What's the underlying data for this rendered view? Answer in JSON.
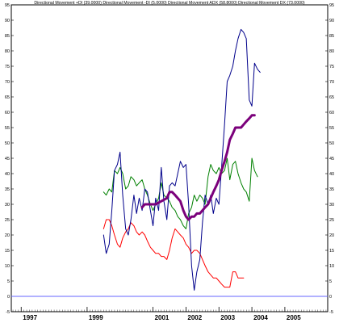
{
  "chart_data": {
    "type": "line",
    "title": "Directional Movement +DI (39.0000) Directional Movement -DI (5.0000) Directional Movement ADX (58.8000) Directional Movement DX (73.0000)",
    "xlabel": "",
    "ylabel": "",
    "x_tick_labels": [
      "1997",
      "1999",
      "2001",
      "2002",
      "2003",
      "2004",
      "2005"
    ],
    "x_tick_values": [
      1997.0,
      1999.0,
      2001.0,
      2002.0,
      2003.0,
      2004.0,
      2005.0
    ],
    "xlim": [
      1996.7,
      2006.3
    ],
    "ylim": [
      -5,
      95
    ],
    "y_ticks": [
      -5,
      0,
      5,
      10,
      15,
      20,
      25,
      30,
      35,
      40,
      45,
      50,
      55,
      60,
      65,
      70,
      75,
      80,
      85,
      90,
      95
    ],
    "grid": false,
    "reference_line": {
      "value": 0,
      "color": "#6666ff"
    },
    "series": [
      {
        "key": "plus_di",
        "color": "#008000",
        "stroke": 1,
        "points": [
          [
            1999.5,
            34
          ],
          [
            1999.58,
            33
          ],
          [
            1999.67,
            35
          ],
          [
            1999.75,
            34
          ],
          [
            1999.83,
            41
          ],
          [
            1999.92,
            40
          ],
          [
            2000.0,
            42
          ],
          [
            2000.08,
            40
          ],
          [
            2000.17,
            35
          ],
          [
            2000.25,
            36
          ],
          [
            2000.33,
            39
          ],
          [
            2000.42,
            38
          ],
          [
            2000.5,
            36
          ],
          [
            2000.58,
            37
          ],
          [
            2000.67,
            38
          ],
          [
            2000.75,
            35
          ],
          [
            2000.83,
            33
          ],
          [
            2000.92,
            30
          ],
          [
            2001.0,
            28
          ],
          [
            2001.08,
            30
          ],
          [
            2001.17,
            32
          ],
          [
            2001.25,
            37
          ],
          [
            2001.33,
            33
          ],
          [
            2001.42,
            32
          ],
          [
            2001.5,
            31
          ],
          [
            2001.58,
            29
          ],
          [
            2001.67,
            28
          ],
          [
            2001.75,
            26
          ],
          [
            2001.83,
            25
          ],
          [
            2001.92,
            23
          ],
          [
            2002.0,
            22
          ],
          [
            2002.08,
            27
          ],
          [
            2002.17,
            29
          ],
          [
            2002.25,
            33
          ],
          [
            2002.33,
            31
          ],
          [
            2002.42,
            33
          ],
          [
            2002.5,
            32
          ],
          [
            2002.58,
            30
          ],
          [
            2002.67,
            39
          ],
          [
            2002.75,
            43
          ],
          [
            2002.83,
            41
          ],
          [
            2002.92,
            40
          ],
          [
            2003.0,
            42
          ],
          [
            2003.08,
            40
          ],
          [
            2003.17,
            41
          ],
          [
            2003.25,
            45
          ],
          [
            2003.33,
            38
          ],
          [
            2003.42,
            43
          ],
          [
            2003.5,
            44
          ],
          [
            2003.58,
            40
          ],
          [
            2003.67,
            37
          ],
          [
            2003.75,
            35
          ],
          [
            2003.83,
            34
          ],
          [
            2003.92,
            31
          ],
          [
            2004.0,
            45
          ],
          [
            2004.08,
            41
          ],
          [
            2004.17,
            39
          ]
        ]
      },
      {
        "key": "minus_di",
        "color": "#ff0000",
        "stroke": 1,
        "points": [
          [
            1999.5,
            22
          ],
          [
            1999.58,
            25
          ],
          [
            1999.67,
            25
          ],
          [
            1999.75,
            23
          ],
          [
            1999.83,
            20
          ],
          [
            1999.92,
            17
          ],
          [
            2000.0,
            16
          ],
          [
            2000.08,
            19
          ],
          [
            2000.17,
            21
          ],
          [
            2000.25,
            22
          ],
          [
            2000.33,
            24
          ],
          [
            2000.42,
            23
          ],
          [
            2000.5,
            21
          ],
          [
            2000.58,
            20
          ],
          [
            2000.67,
            21
          ],
          [
            2000.75,
            20
          ],
          [
            2000.83,
            18
          ],
          [
            2000.92,
            16
          ],
          [
            2001.0,
            15
          ],
          [
            2001.08,
            14
          ],
          [
            2001.17,
            14
          ],
          [
            2001.25,
            13
          ],
          [
            2001.33,
            13
          ],
          [
            2001.42,
            12
          ],
          [
            2001.5,
            15
          ],
          [
            2001.58,
            19
          ],
          [
            2001.67,
            22
          ],
          [
            2001.75,
            21
          ],
          [
            2001.83,
            20
          ],
          [
            2001.92,
            19
          ],
          [
            2002.0,
            17
          ],
          [
            2002.08,
            16
          ],
          [
            2002.17,
            14
          ],
          [
            2002.25,
            15
          ],
          [
            2002.33,
            15
          ],
          [
            2002.42,
            14
          ],
          [
            2002.5,
            12
          ],
          [
            2002.58,
            10
          ],
          [
            2002.67,
            8
          ],
          [
            2002.75,
            7
          ],
          [
            2002.83,
            6
          ],
          [
            2002.92,
            6
          ],
          [
            2003.0,
            5
          ],
          [
            2003.08,
            4
          ],
          [
            2003.17,
            3
          ],
          [
            2003.25,
            3
          ],
          [
            2003.33,
            3
          ],
          [
            2003.42,
            8
          ],
          [
            2003.5,
            8
          ],
          [
            2003.58,
            6
          ],
          [
            2003.67,
            6
          ],
          [
            2003.75,
            6
          ]
        ]
      },
      {
        "key": "dx",
        "color": "#00008b",
        "stroke": 1,
        "points": [
          [
            1999.5,
            20
          ],
          [
            1999.58,
            14
          ],
          [
            1999.67,
            17
          ],
          [
            1999.75,
            28
          ],
          [
            1999.83,
            41
          ],
          [
            1999.92,
            43
          ],
          [
            2000.0,
            47
          ],
          [
            2000.08,
            33
          ],
          [
            2000.17,
            22
          ],
          [
            2000.25,
            20
          ],
          [
            2000.33,
            25
          ],
          [
            2000.42,
            33
          ],
          [
            2000.5,
            27
          ],
          [
            2000.58,
            32
          ],
          [
            2000.67,
            28
          ],
          [
            2000.75,
            35
          ],
          [
            2000.83,
            34
          ],
          [
            2000.92,
            28
          ],
          [
            2001.0,
            23
          ],
          [
            2001.08,
            32
          ],
          [
            2001.17,
            28
          ],
          [
            2001.25,
            42
          ],
          [
            2001.33,
            31
          ],
          [
            2001.42,
            25
          ],
          [
            2001.5,
            36
          ],
          [
            2001.58,
            37
          ],
          [
            2001.67,
            36
          ],
          [
            2001.75,
            40
          ],
          [
            2001.83,
            44
          ],
          [
            2001.92,
            42
          ],
          [
            2002.0,
            43
          ],
          [
            2002.08,
            30
          ],
          [
            2002.17,
            10
          ],
          [
            2002.25,
            2
          ],
          [
            2002.33,
            8
          ],
          [
            2002.42,
            12
          ],
          [
            2002.5,
            24
          ],
          [
            2002.58,
            33
          ],
          [
            2002.67,
            30
          ],
          [
            2002.75,
            33
          ],
          [
            2002.83,
            27
          ],
          [
            2002.92,
            32
          ],
          [
            2003.0,
            30
          ],
          [
            2003.08,
            42
          ],
          [
            2003.17,
            56
          ],
          [
            2003.25,
            70
          ],
          [
            2003.33,
            72
          ],
          [
            2003.42,
            75
          ],
          [
            2003.5,
            80
          ],
          [
            2003.58,
            84
          ],
          [
            2003.67,
            87
          ],
          [
            2003.75,
            86
          ],
          [
            2003.83,
            84
          ],
          [
            2003.92,
            64
          ],
          [
            2004.0,
            62
          ],
          [
            2004.08,
            76
          ],
          [
            2004.17,
            74
          ],
          [
            2004.25,
            73
          ]
        ]
      },
      {
        "key": "adx",
        "color": "#7b007b",
        "stroke": 3,
        "points": [
          [
            2000.67,
            29
          ],
          [
            2000.75,
            30
          ],
          [
            2000.92,
            30
          ],
          [
            2001.08,
            30
          ],
          [
            2001.25,
            31
          ],
          [
            2001.42,
            32
          ],
          [
            2001.5,
            34
          ],
          [
            2001.58,
            34
          ],
          [
            2001.67,
            33
          ],
          [
            2001.75,
            32
          ],
          [
            2001.83,
            31
          ],
          [
            2001.92,
            28
          ],
          [
            2002.0,
            26
          ],
          [
            2002.08,
            25
          ],
          [
            2002.17,
            26
          ],
          [
            2002.25,
            26
          ],
          [
            2002.33,
            27
          ],
          [
            2002.42,
            27
          ],
          [
            2002.5,
            28
          ],
          [
            2002.58,
            29
          ],
          [
            2002.67,
            30
          ],
          [
            2002.75,
            32
          ],
          [
            2002.83,
            34
          ],
          [
            2002.92,
            36
          ],
          [
            2003.0,
            38
          ],
          [
            2003.08,
            41
          ],
          [
            2003.17,
            44
          ],
          [
            2003.25,
            47
          ],
          [
            2003.33,
            51
          ],
          [
            2003.42,
            53
          ],
          [
            2003.5,
            55
          ],
          [
            2003.58,
            55
          ],
          [
            2003.67,
            55
          ],
          [
            2003.75,
            56
          ],
          [
            2003.83,
            57
          ],
          [
            2003.92,
            58
          ],
          [
            2004.0,
            59
          ],
          [
            2004.08,
            59
          ]
        ]
      }
    ]
  }
}
